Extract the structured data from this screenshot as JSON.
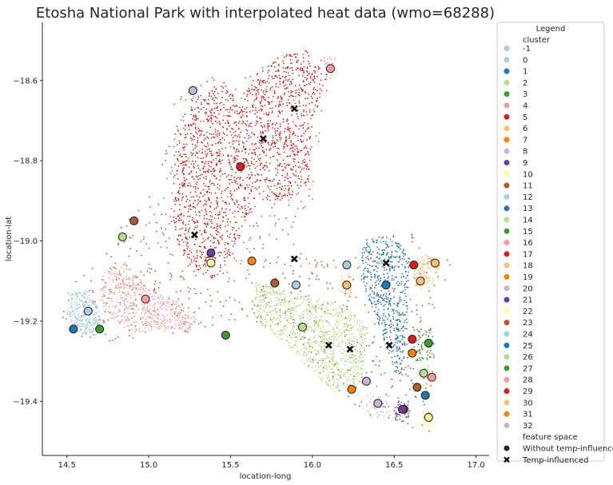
{
  "chart_data": {
    "type": "scatter",
    "title": "Etosha National Park with interpolated heat data (wmo=68288)",
    "xlabel": "location-long",
    "ylabel": "location-lat",
    "xlim": [
      14.35,
      17.08
    ],
    "ylim": [
      -19.535,
      -18.455
    ],
    "xticks": [
      "14.5",
      "15.0",
      "15.5",
      "16.0",
      "16.5",
      "17.0"
    ],
    "xtick_values": [
      14.5,
      15.0,
      15.5,
      16.0,
      16.5,
      17.0
    ],
    "yticks": [
      "−18.6",
      "−18.8",
      "−19.0",
      "−19.2",
      "−19.4"
    ],
    "ytick_values": [
      -18.6,
      -18.8,
      -19.0,
      -19.2,
      -19.4
    ],
    "grid": false,
    "legend_placement": "outside-right",
    "legend": {
      "title": "Legend",
      "cluster_heading": "cluster",
      "feature_heading": "feature space",
      "feature_entries": [
        "Without temp-influence",
        "Temp-influenced"
      ]
    },
    "cluster_labels": [
      "-1",
      "0",
      "1",
      "2",
      "3",
      "4",
      "5",
      "6",
      "7",
      "8",
      "9",
      "10",
      "11",
      "12",
      "13",
      "14",
      "15",
      "16",
      "17",
      "18",
      "19",
      "20",
      "21",
      "22",
      "23",
      "24",
      "25",
      "26",
      "27",
      "28",
      "29",
      "30",
      "31",
      "32"
    ],
    "palette": [
      "#a6cee3",
      "#1f78b4",
      "#b2df8a",
      "#33a02c",
      "#fb9a99",
      "#e31a1c",
      "#fdbf6f",
      "#ff7f00",
      "#cab2d6",
      "#6a3d9a",
      "#ffff99",
      "#b15928"
    ],
    "centroids": [
      {
        "cluster": 0,
        "x": 14.63,
        "y": -19.175
      },
      {
        "cluster": 1,
        "x": 14.54,
        "y": -19.22
      },
      {
        "cluster": 2,
        "x": 14.84,
        "y": -18.99
      },
      {
        "cluster": 3,
        "x": 14.7,
        "y": -19.22
      },
      {
        "cluster": 4,
        "x": 14.98,
        "y": -19.145
      },
      {
        "cluster": 5,
        "x": 15.56,
        "y": -18.815
      },
      {
        "cluster": 7,
        "x": 15.63,
        "y": -19.05
      },
      {
        "cluster": 8,
        "x": 15.27,
        "y": -18.625
      },
      {
        "cluster": 9,
        "x": 15.38,
        "y": -19.03
      },
      {
        "cluster": 10,
        "x": 15.38,
        "y": -19.055
      },
      {
        "cluster": 11,
        "x": 14.91,
        "y": -18.95
      },
      {
        "cluster": 12,
        "x": 15.9,
        "y": -19.11
      },
      {
        "cluster": 13,
        "x": 16.45,
        "y": -19.11
      },
      {
        "cluster": 14,
        "x": 15.94,
        "y": -19.215
      },
      {
        "cluster": 15,
        "x": 15.47,
        "y": -19.235
      },
      {
        "cluster": 16,
        "x": 16.11,
        "y": -18.57
      },
      {
        "cluster": 17,
        "x": 16.56,
        "y": -19.42
      },
      {
        "cluster": 18,
        "x": 16.21,
        "y": -19.11
      },
      {
        "cluster": 19,
        "x": 16.61,
        "y": -19.28
      },
      {
        "cluster": 20,
        "x": 16.33,
        "y": -19.35
      },
      {
        "cluster": 21,
        "x": 16.55,
        "y": -19.42
      },
      {
        "cluster": 22,
        "x": 16.71,
        "y": -19.44
      },
      {
        "cluster": 23,
        "x": 15.77,
        "y": -19.105
      },
      {
        "cluster": 24,
        "x": 16.21,
        "y": -19.06
      },
      {
        "cluster": 25,
        "x": 16.69,
        "y": -19.385
      },
      {
        "cluster": 26,
        "x": 16.68,
        "y": -19.33
      },
      {
        "cluster": 27,
        "x": 16.71,
        "y": -19.255
      },
      {
        "cluster": 28,
        "x": 16.73,
        "y": -19.34
      },
      {
        "cluster": 29,
        "x": 16.62,
        "y": -19.06
      },
      {
        "cluster": 30,
        "x": 16.75,
        "y": -19.055
      },
      {
        "cluster": 31,
        "x": 16.24,
        "y": -19.37
      },
      {
        "cluster": 32,
        "x": 16.4,
        "y": -19.405
      },
      {
        "cluster": 6,
        "x": 16.66,
        "y": -19.1
      },
      {
        "cluster": 5,
        "x": 16.61,
        "y": -19.245
      },
      {
        "cluster": 11,
        "x": 16.64,
        "y": -19.365
      }
    ],
    "temp_influenced": [
      {
        "x": 15.89,
        "y": -18.67
      },
      {
        "x": 15.7,
        "y": -18.745
      },
      {
        "x": 15.28,
        "y": -18.985
      },
      {
        "x": 15.89,
        "y": -19.045
      },
      {
        "x": 16.45,
        "y": -19.055
      },
      {
        "x": 16.1,
        "y": -19.26
      },
      {
        "x": 16.23,
        "y": -19.27
      },
      {
        "x": 16.47,
        "y": -19.26
      }
    ],
    "point_regions": [
      {
        "cluster": 11,
        "polygon": [
          [
            15.15,
            18.62
          ],
          [
            15.35,
            18.58
          ],
          [
            15.5,
            18.62
          ],
          [
            15.7,
            18.55
          ],
          [
            15.95,
            18.52
          ],
          [
            16.15,
            18.56
          ],
          [
            16.05,
            18.72
          ],
          [
            16.0,
            18.9
          ],
          [
            15.85,
            19.0
          ],
          [
            16.2,
            19.05
          ],
          [
            16.6,
            18.98
          ],
          [
            16.85,
            19.05
          ],
          [
            16.75,
            19.2
          ],
          [
            16.72,
            19.5
          ],
          [
            16.55,
            19.45
          ],
          [
            16.35,
            19.45
          ],
          [
            16.1,
            19.35
          ],
          [
            15.9,
            19.25
          ],
          [
            15.7,
            19.22
          ],
          [
            15.5,
            19.2
          ],
          [
            15.3,
            19.22
          ],
          [
            15.0,
            19.25
          ],
          [
            14.6,
            19.25
          ],
          [
            14.45,
            19.18
          ],
          [
            14.5,
            19.1
          ],
          [
            14.7,
            19.05
          ],
          [
            14.85,
            18.95
          ],
          [
            14.95,
            18.92
          ],
          [
            15.05,
            18.85
          ],
          [
            15.15,
            18.7
          ]
        ],
        "density": 900
      },
      {
        "cluster": 5,
        "polygon": [
          [
            15.25,
            18.65
          ],
          [
            15.45,
            18.6
          ],
          [
            15.55,
            18.65
          ],
          [
            15.72,
            18.55
          ],
          [
            15.95,
            18.52
          ],
          [
            16.1,
            18.57
          ],
          [
            16.0,
            18.72
          ],
          [
            15.98,
            18.85
          ],
          [
            15.85,
            18.9
          ],
          [
            15.65,
            18.9
          ],
          [
            15.55,
            19.0
          ],
          [
            15.4,
            19.1
          ],
          [
            15.2,
            19.05
          ],
          [
            15.15,
            18.95
          ],
          [
            15.15,
            18.8
          ],
          [
            15.2,
            18.7
          ]
        ],
        "density": 1600
      },
      {
        "cluster": 4,
        "polygon": [
          [
            14.72,
            19.08
          ],
          [
            14.85,
            19.05
          ],
          [
            15.0,
            19.12
          ],
          [
            15.2,
            19.15
          ],
          [
            15.3,
            19.18
          ],
          [
            15.25,
            19.23
          ],
          [
            15.05,
            19.22
          ],
          [
            14.9,
            19.23
          ],
          [
            14.78,
            19.2
          ],
          [
            14.7,
            19.15
          ]
        ],
        "density": 520
      },
      {
        "cluster": 0,
        "polygon": [
          [
            14.5,
            19.13
          ],
          [
            14.62,
            19.12
          ],
          [
            14.72,
            19.18
          ],
          [
            14.68,
            19.24
          ],
          [
            14.55,
            19.23
          ],
          [
            14.5,
            19.18
          ]
        ],
        "density": 260
      },
      {
        "cluster": 14,
        "polygon": [
          [
            15.65,
            19.1
          ],
          [
            15.9,
            19.13
          ],
          [
            16.1,
            19.15
          ],
          [
            16.25,
            19.18
          ],
          [
            16.35,
            19.22
          ],
          [
            16.3,
            19.35
          ],
          [
            16.15,
            19.38
          ],
          [
            15.98,
            19.32
          ],
          [
            15.82,
            19.25
          ],
          [
            15.65,
            19.2
          ]
        ],
        "density": 1000
      },
      {
        "cluster": 13,
        "polygon": [
          [
            16.3,
            19.0
          ],
          [
            16.5,
            18.98
          ],
          [
            16.6,
            19.05
          ],
          [
            16.58,
            19.2
          ],
          [
            16.55,
            19.35
          ],
          [
            16.48,
            19.3
          ],
          [
            16.38,
            19.18
          ],
          [
            16.3,
            19.1
          ]
        ],
        "density": 520
      },
      {
        "cluster": 18,
        "polygon": [
          [
            16.6,
            19.05
          ],
          [
            16.72,
            19.03
          ],
          [
            16.78,
            19.06
          ],
          [
            16.72,
            19.12
          ],
          [
            16.63,
            19.12
          ]
        ],
        "density": 120
      },
      {
        "cluster": 30,
        "polygon": [
          [
            16.18,
            19.08
          ],
          [
            16.24,
            19.08
          ],
          [
            16.24,
            19.14
          ],
          [
            16.18,
            19.14
          ]
        ],
        "density": 40
      },
      {
        "cluster": 27,
        "polygon": [
          [
            16.62,
            19.22
          ],
          [
            16.75,
            19.22
          ],
          [
            16.75,
            19.3
          ],
          [
            16.62,
            19.3
          ]
        ],
        "density": 60
      },
      {
        "cluster": 21,
        "polygon": [
          [
            16.5,
            19.4
          ],
          [
            16.6,
            19.4
          ],
          [
            16.6,
            19.45
          ],
          [
            16.5,
            19.45
          ]
        ],
        "density": 40
      },
      {
        "cluster": 32,
        "polygon": [
          [
            16.33,
            19.38
          ],
          [
            16.48,
            19.38
          ],
          [
            16.48,
            19.44
          ],
          [
            16.33,
            19.44
          ]
        ],
        "density": 40
      },
      {
        "cluster": 10,
        "polygon": [
          [
            16.66,
            19.42
          ],
          [
            16.76,
            19.42
          ],
          [
            16.76,
            19.47
          ],
          [
            16.66,
            19.47
          ]
        ],
        "density": 30
      },
      {
        "cluster": 26,
        "polygon": [
          [
            16.66,
            19.31
          ],
          [
            16.72,
            19.31
          ],
          [
            16.72,
            19.36
          ],
          [
            16.66,
            19.36
          ]
        ],
        "density": 20
      },
      {
        "cluster": 8,
        "polygon": [
          [
            15.24,
            18.61
          ],
          [
            15.3,
            18.61
          ],
          [
            15.3,
            18.65
          ],
          [
            15.24,
            18.65
          ]
        ],
        "density": 15
      },
      {
        "cluster": 16,
        "polygon": [
          [
            16.07,
            18.54
          ],
          [
            16.14,
            18.54
          ],
          [
            16.14,
            18.6
          ],
          [
            16.07,
            18.6
          ]
        ],
        "density": 25
      }
    ]
  }
}
